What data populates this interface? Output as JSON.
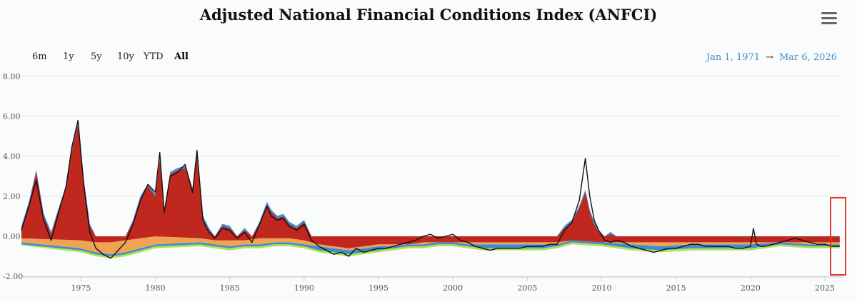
{
  "title": "Adjusted National Financial Conditions Index (ANFCI)",
  "range_selector": {
    "buttons": [
      "6m",
      "1y",
      "5y",
      "10y",
      "YTD",
      "All"
    ],
    "selected": "All"
  },
  "date_range": {
    "from": "Jan 1, 1971",
    "arrow": "→",
    "to": "Mar 6, 2026"
  },
  "colors": {
    "risk": "#c0271f",
    "credit": "#f0a452",
    "leverage": "#3b8fd0",
    "nonfinancial_leverage": "#b5e04a",
    "anfci_line": "#111111",
    "highlight": "#e03a2a",
    "grid": "#e4e8ea"
  },
  "chart_data": {
    "type": "area",
    "ylim": [
      -2,
      8
    ],
    "yticks": [
      "8.00",
      "6.00",
      "4.00",
      "2.00",
      "0.00",
      "-2.00"
    ],
    "ytick_values": [
      8,
      6,
      4,
      2,
      0,
      -2
    ],
    "xlim": [
      1971,
      2026.2
    ],
    "xticks": [
      "1975",
      "1980",
      "1985",
      "1990",
      "1995",
      "2000",
      "2005",
      "2010",
      "2015",
      "2020",
      "2025"
    ],
    "xtick_values": [
      1975,
      1980,
      1985,
      1990,
      1995,
      2000,
      2005,
      2010,
      2015,
      2020,
      2025
    ],
    "grid": true,
    "highlight_range": [
      2025.0,
      2026.2
    ],
    "anfci": {
      "x": [
        1971.0,
        1971.5,
        1972.0,
        1972.5,
        1973.0,
        1973.5,
        1974.0,
        1974.4,
        1974.8,
        1975.2,
        1975.6,
        1976.0,
        1976.5,
        1977.0,
        1977.5,
        1978.0,
        1978.5,
        1979.0,
        1979.5,
        1980.0,
        1980.3,
        1980.6,
        1981.0,
        1981.5,
        1982.0,
        1982.5,
        1982.8,
        1983.2,
        1983.6,
        1984.0,
        1984.5,
        1985.0,
        1985.5,
        1986.0,
        1986.5,
        1987.0,
        1987.5,
        1987.8,
        1988.2,
        1988.6,
        1989.0,
        1989.5,
        1990.0,
        1990.5,
        1991.0,
        1991.5,
        1992.0,
        1992.5,
        1993.0,
        1993.5,
        1994.0,
        1994.5,
        1995.0,
        1995.5,
        1996.0,
        1996.5,
        1997.0,
        1997.5,
        1998.0,
        1998.5,
        1999.0,
        1999.5,
        2000.0,
        2000.5,
        2001.0,
        2001.5,
        2002.0,
        2002.5,
        2003.0,
        2003.5,
        2004.0,
        2004.5,
        2005.0,
        2005.5,
        2006.0,
        2006.5,
        2007.0,
        2007.5,
        2008.0,
        2008.5,
        2008.9,
        2009.2,
        2009.5,
        2009.8,
        2010.2,
        2010.6,
        2011.0,
        2011.5,
        2012.0,
        2012.5,
        2013.0,
        2013.5,
        2014.0,
        2014.5,
        2015.0,
        2015.5,
        2016.0,
        2016.5,
        2017.0,
        2017.5,
        2018.0,
        2018.5,
        2019.0,
        2019.5,
        2020.0,
        2020.2,
        2020.4,
        2020.7,
        2021.0,
        2021.5,
        2022.0,
        2022.5,
        2023.0,
        2023.5,
        2024.0,
        2024.5,
        2025.0,
        2025.5,
        2026.0
      ],
      "y": [
        0.3,
        1.5,
        2.8,
        0.8,
        -0.2,
        1.2,
        2.5,
        4.5,
        5.8,
        2.5,
        0.2,
        -0.6,
        -0.9,
        -1.1,
        -0.7,
        -0.3,
        0.6,
        1.8,
        2.6,
        2.2,
        4.2,
        1.2,
        3.0,
        3.2,
        3.6,
        2.2,
        4.3,
        0.8,
        0.2,
        -0.1,
        0.4,
        0.3,
        -0.1,
        0.2,
        -0.3,
        0.6,
        1.5,
        1.0,
        0.8,
        0.9,
        0.5,
        0.3,
        0.6,
        -0.2,
        -0.5,
        -0.7,
        -0.9,
        -0.8,
        -1.0,
        -0.6,
        -0.8,
        -0.7,
        -0.6,
        -0.6,
        -0.5,
        -0.4,
        -0.3,
        -0.2,
        0.0,
        0.1,
        -0.1,
        0.0,
        0.1,
        -0.2,
        -0.3,
        -0.5,
        -0.6,
        -0.7,
        -0.6,
        -0.6,
        -0.6,
        -0.6,
        -0.5,
        -0.5,
        -0.5,
        -0.4,
        -0.4,
        0.3,
        0.7,
        1.8,
        3.9,
        2.0,
        0.8,
        0.3,
        -0.2,
        -0.3,
        -0.2,
        -0.3,
        -0.5,
        -0.6,
        -0.7,
        -0.8,
        -0.7,
        -0.6,
        -0.6,
        -0.5,
        -0.4,
        -0.4,
        -0.5,
        -0.5,
        -0.5,
        -0.5,
        -0.6,
        -0.6,
        -0.5,
        0.4,
        -0.4,
        -0.5,
        -0.5,
        -0.4,
        -0.3,
        -0.2,
        -0.1,
        -0.2,
        -0.3,
        -0.4,
        -0.4,
        -0.5,
        -0.5
      ]
    },
    "risk": {
      "x": [
        1971.0,
        1971.5,
        1972.0,
        1972.5,
        1973.0,
        1973.5,
        1974.0,
        1974.4,
        1974.8,
        1975.2,
        1975.6,
        1976.0,
        1976.5,
        1977.0,
        1977.5,
        1978.0,
        1978.5,
        1979.0,
        1979.5,
        1980.0,
        1980.3,
        1980.6,
        1981.0,
        1981.5,
        1982.0,
        1982.5,
        1982.8,
        1983.2,
        1983.6,
        1984.0,
        1984.5,
        1985.0,
        1985.5,
        1986.0,
        1986.5,
        1987.0,
        1987.5,
        1987.8,
        1988.2,
        1988.6,
        1989.0,
        1989.5,
        1990.0,
        1990.5,
        1991.0,
        2007.0,
        2007.5,
        2008.0,
        2008.5,
        2008.9,
        2009.2,
        2009.5,
        2009.8,
        2010.2,
        2010.6,
        2011.0
      ],
      "y": [
        0.4,
        1.6,
        3.2,
        1.0,
        0.1,
        1.3,
        2.4,
        4.3,
        5.6,
        2.7,
        0.5,
        0.0,
        0.0,
        0.0,
        0.0,
        0.0,
        0.7,
        1.9,
        2.5,
        2.0,
        3.8,
        1.2,
        3.1,
        3.3,
        3.4,
        2.3,
        4.0,
        0.9,
        0.3,
        0.0,
        0.5,
        0.4,
        0.0,
        0.3,
        0.0,
        0.6,
        1.6,
        1.2,
        0.9,
        1.0,
        0.6,
        0.4,
        0.7,
        0.0,
        0.0,
        0.0,
        0.4,
        0.7,
        1.4,
        2.2,
        1.2,
        0.6,
        0.2,
        0.0,
        0.1,
        0.0
      ]
    },
    "negative_band": {
      "x": [
        1971.0,
        1975.0,
        1976.0,
        1977.0,
        1978.0,
        1979.0,
        1980.0,
        1983.0,
        1984.0,
        1985.0,
        1986.0,
        1987.0,
        1988.0,
        1989.0,
        1990.0,
        1991.0,
        1992.0,
        1993.0,
        1994.0,
        1995.0,
        1996.0,
        1997.0,
        1998.0,
        1999.0,
        2000.0,
        2001.0,
        2002.0,
        2003.0,
        2004.0,
        2005.0,
        2006.0,
        2007.0,
        2008.0,
        2010.0,
        2012.0,
        2014.0,
        2016.0,
        2018.0,
        2020.0,
        2022.0,
        2024.0,
        2026.0
      ],
      "red_bottom": [
        -0.1,
        -0.2,
        -0.3,
        -0.3,
        -0.2,
        -0.1,
        0.0,
        -0.1,
        -0.2,
        -0.2,
        -0.2,
        -0.1,
        -0.1,
        -0.1,
        -0.2,
        -0.4,
        -0.5,
        -0.6,
        -0.5,
        -0.4,
        -0.4,
        -0.4,
        -0.3,
        -0.3,
        -0.3,
        -0.3,
        -0.3,
        -0.3,
        -0.3,
        -0.3,
        -0.3,
        -0.3,
        -0.2,
        -0.3,
        -0.3,
        -0.3,
        -0.3,
        -0.3,
        -0.3,
        -0.3,
        -0.3,
        -0.3
      ],
      "orange_bottom": [
        -0.3,
        -0.6,
        -0.8,
        -0.9,
        -0.8,
        -0.6,
        -0.4,
        -0.3,
        -0.4,
        -0.5,
        -0.4,
        -0.4,
        -0.3,
        -0.3,
        -0.4,
        -0.5,
        -0.6,
        -0.7,
        -0.6,
        -0.5,
        -0.5,
        -0.4,
        -0.4,
        -0.3,
        -0.3,
        -0.4,
        -0.4,
        -0.4,
        -0.4,
        -0.4,
        -0.4,
        -0.4,
        -0.2,
        -0.3,
        -0.4,
        -0.5,
        -0.4,
        -0.4,
        -0.4,
        -0.3,
        -0.4,
        -0.4
      ],
      "blue_bottom": [
        -0.4,
        -0.7,
        -0.9,
        -1.0,
        -0.9,
        -0.7,
        -0.5,
        -0.4,
        -0.5,
        -0.6,
        -0.5,
        -0.5,
        -0.4,
        -0.4,
        -0.5,
        -0.7,
        -0.8,
        -0.9,
        -0.8,
        -0.7,
        -0.6,
        -0.5,
        -0.5,
        -0.4,
        -0.4,
        -0.5,
        -0.6,
        -0.6,
        -0.6,
        -0.6,
        -0.6,
        -0.5,
        -0.3,
        -0.4,
        -0.6,
        -0.7,
        -0.6,
        -0.6,
        -0.6,
        -0.4,
        -0.5,
        -0.5
      ],
      "green_bottom": [
        -0.45,
        -0.8,
        -1.0,
        -1.1,
        -1.0,
        -0.8,
        -0.6,
        -0.5,
        -0.6,
        -0.7,
        -0.6,
        -0.6,
        -0.5,
        -0.5,
        -0.6,
        -0.8,
        -0.9,
        -1.0,
        -0.9,
        -0.8,
        -0.7,
        -0.6,
        -0.6,
        -0.5,
        -0.5,
        -0.6,
        -0.7,
        -0.7,
        -0.7,
        -0.7,
        -0.7,
        -0.6,
        -0.4,
        -0.5,
        -0.7,
        -0.8,
        -0.7,
        -0.7,
        -0.7,
        -0.5,
        -0.6,
        -0.6
      ]
    }
  }
}
